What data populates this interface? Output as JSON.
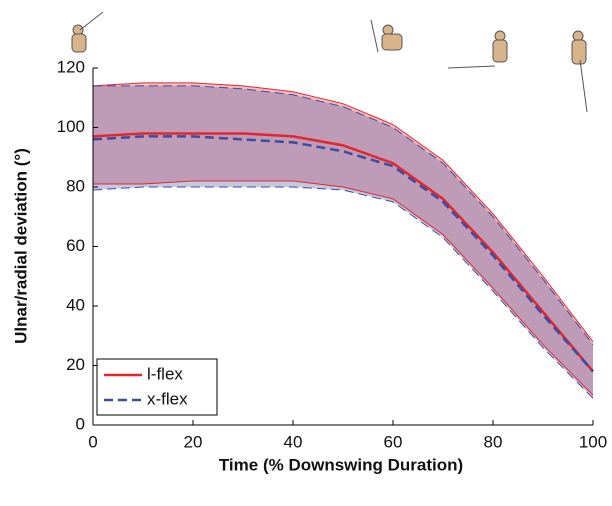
{
  "chart_data": {
    "type": "line",
    "xlabel": "Time (% Downswing Duration)",
    "ylabel": "Ulnar/radial deviation (°)",
    "x": [
      0,
      10,
      20,
      30,
      40,
      50,
      60,
      70,
      80,
      90,
      100
    ],
    "series": [
      {
        "name": "l-flex",
        "color": "#e3262d",
        "dash": false,
        "values": [
          97,
          98,
          98,
          98,
          97,
          94,
          88,
          76,
          58,
          38,
          18
        ],
        "upper": [
          114,
          115,
          115,
          114,
          112,
          108,
          101,
          89,
          71,
          50,
          28
        ],
        "lower": [
          81,
          81,
          82,
          82,
          82,
          80,
          76,
          64,
          46,
          27,
          10
        ]
      },
      {
        "name": "x-flex",
        "color": "#3a4da0",
        "dash": true,
        "values": [
          96,
          97,
          97,
          96,
          95,
          92,
          87,
          75,
          57,
          37,
          18
        ],
        "upper": [
          114,
          114,
          114,
          113,
          111,
          107,
          100,
          88,
          70,
          49,
          27
        ],
        "lower": [
          79,
          80,
          80,
          80,
          80,
          79,
          75,
          63,
          45,
          26,
          9
        ]
      }
    ],
    "xlim": [
      0,
      100
    ],
    "ylim": [
      0,
      120
    ],
    "xticks": [
      0,
      20,
      40,
      60,
      80,
      100
    ],
    "yticks": [
      0,
      20,
      40,
      60,
      80,
      100,
      120
    ],
    "grid": false,
    "legend": "lower left"
  }
}
